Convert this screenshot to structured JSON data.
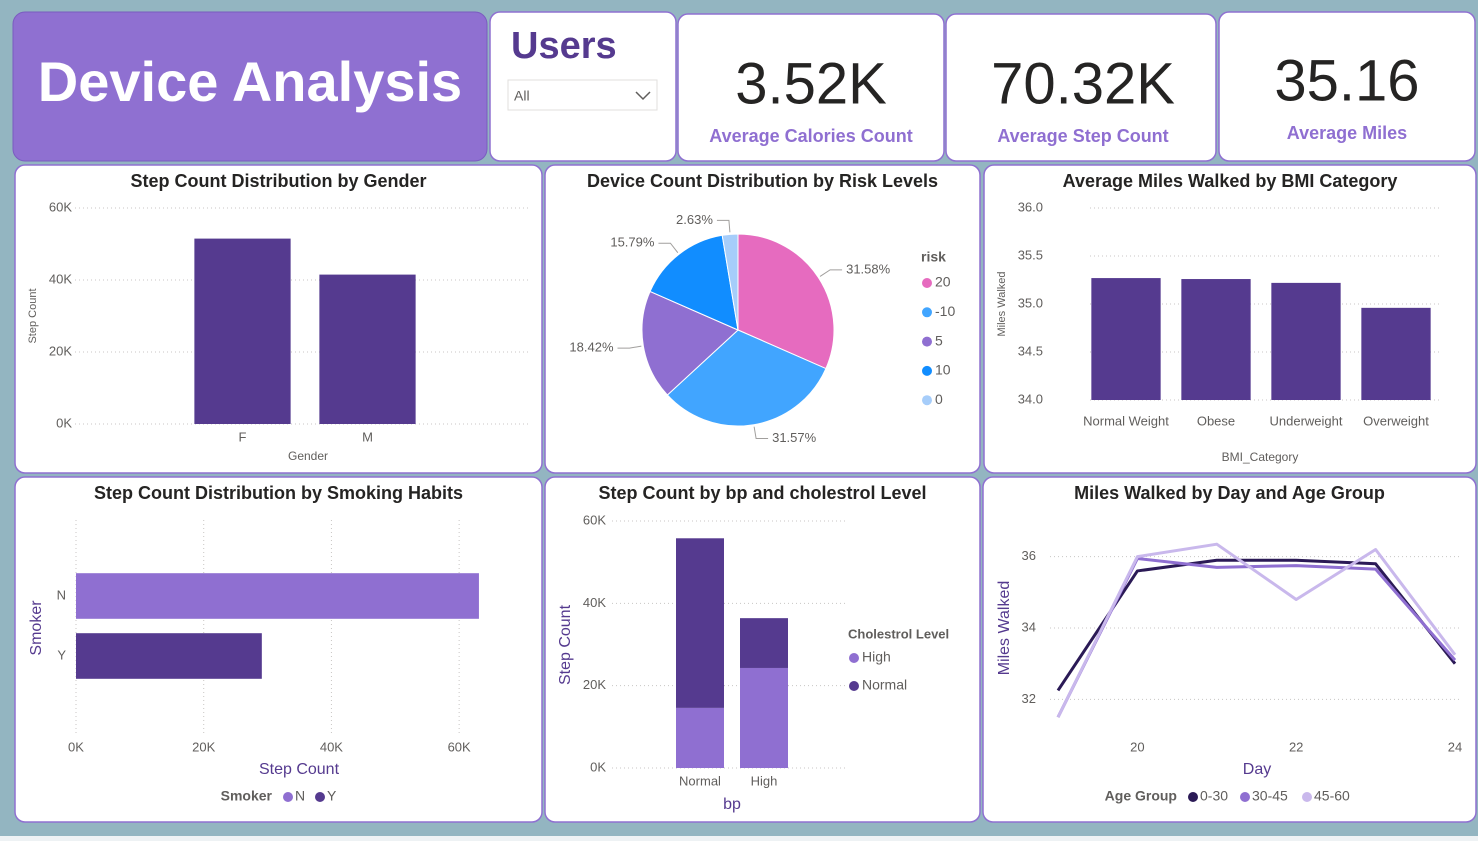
{
  "title": "Device Analysis",
  "slicer": {
    "label": "Users",
    "value": "All"
  },
  "cards": [
    {
      "value": "3.52K",
      "label": "Average Calories Count"
    },
    {
      "value": "70.32K",
      "label": "Average Step Count"
    },
    {
      "value": "35.16",
      "label": "Average Miles"
    }
  ],
  "chart_data": [
    {
      "type": "bar",
      "title": "Step Count Distribution by Gender",
      "x_label": "Gender",
      "y_label": "Step Count",
      "categories": [
        "F",
        "M"
      ],
      "values": [
        51500,
        41500
      ],
      "color": "#553a8f",
      "ylim": [
        0,
        60000
      ],
      "yticks": [
        {
          "value": 0,
          "label": "0K"
        },
        {
          "value": 20000,
          "label": "20K"
        },
        {
          "value": 40000,
          "label": "40K"
        },
        {
          "value": 60000,
          "label": "60K"
        }
      ],
      "grid": true
    },
    {
      "type": "pie",
      "title": "Device Count Distribution by Risk Levels",
      "legend_title": "risk",
      "categories": [
        "20",
        "-10",
        "5",
        "10",
        "0"
      ],
      "values": [
        31.58,
        31.57,
        18.42,
        15.79,
        2.63
      ],
      "value_labels": [
        "31.58%",
        "31.57%",
        "18.42%",
        "15.79%",
        "2.63%"
      ],
      "colors": [
        "#e66bbf",
        "#41a5ff",
        "#8f6fd1",
        "#118dff",
        "#a6cdfa"
      ]
    },
    {
      "type": "bar",
      "title": "Average Miles Walked by BMI Category",
      "x_label": "BMI_Category",
      "y_label": "Miles Walked",
      "categories": [
        "Normal Weight",
        "Obese",
        "Underweight",
        "Overweight"
      ],
      "values": [
        35.27,
        35.26,
        35.22,
        34.96
      ],
      "color": "#553a8f",
      "ylim": [
        34,
        36
      ],
      "yticks": [
        {
          "value": 34,
          "label": "34.0"
        },
        34.5,
        {
          "value": 35,
          "label": "35.0"
        },
        35.5,
        {
          "value": 36,
          "label": "36.0"
        }
      ],
      "grid": true
    },
    {
      "type": "hbar",
      "title": "Step Count Distribution by Smoking Habits",
      "x_label": "Step Count",
      "y_label": "Smoker",
      "legend_title": "Smoker",
      "categories": [
        "N",
        "Y"
      ],
      "values": [
        63100,
        29100
      ],
      "colors": [
        "#8f6fd1",
        "#553a8f"
      ],
      "xlim": [
        0,
        70000
      ],
      "xticks": [
        {
          "value": 0,
          "label": "0K"
        },
        {
          "value": 20000,
          "label": "20K"
        },
        {
          "value": 40000,
          "label": "40K"
        },
        {
          "value": 60000,
          "label": "60K"
        }
      ],
      "grid": true
    },
    {
      "type": "stacked_bar",
      "title": "Step Count by bp and cholestrol Level",
      "x_label": "bp",
      "y_label": "Step Count",
      "legend_title": "Cholestrol Level",
      "categories": [
        "Normal",
        "High"
      ],
      "series": [
        {
          "name": "High",
          "color": "#8f6fd1",
          "values": [
            14600,
            24300
          ]
        },
        {
          "name": "Normal",
          "color": "#553a8f",
          "values": [
            41200,
            12100
          ]
        }
      ],
      "ylim": [
        0,
        60000
      ],
      "yticks": [
        {
          "value": 0,
          "label": "0K"
        },
        {
          "value": 20000,
          "label": "20K"
        },
        {
          "value": 40000,
          "label": "40K"
        },
        {
          "value": 60000,
          "label": "60K"
        }
      ],
      "grid": true
    },
    {
      "type": "line",
      "title": "Miles Walked by Day and Age Group",
      "x_label": "Day",
      "y_label": "Miles Walked",
      "legend_title": "Age Group",
      "x": [
        19,
        20,
        21,
        22,
        23,
        24
      ],
      "series": [
        {
          "name": "0-30",
          "color": "#2b1a56",
          "values": [
            32.25,
            35.6,
            35.9,
            35.9,
            35.8,
            33.0
          ]
        },
        {
          "name": "30-45",
          "color": "#8f6fd1",
          "values": [
            31.5,
            35.95,
            35.7,
            35.75,
            35.65,
            33.1
          ]
        },
        {
          "name": "45-60",
          "color": "#c9b8ec",
          "values": [
            31.5,
            36.0,
            36.35,
            34.8,
            36.2,
            33.25
          ]
        }
      ],
      "xlim": [
        19,
        24
      ],
      "xticks": [
        20,
        22,
        24
      ],
      "ylim": [
        31,
        37
      ],
      "yticks": [
        32,
        34,
        36
      ],
      "grid": true
    }
  ]
}
